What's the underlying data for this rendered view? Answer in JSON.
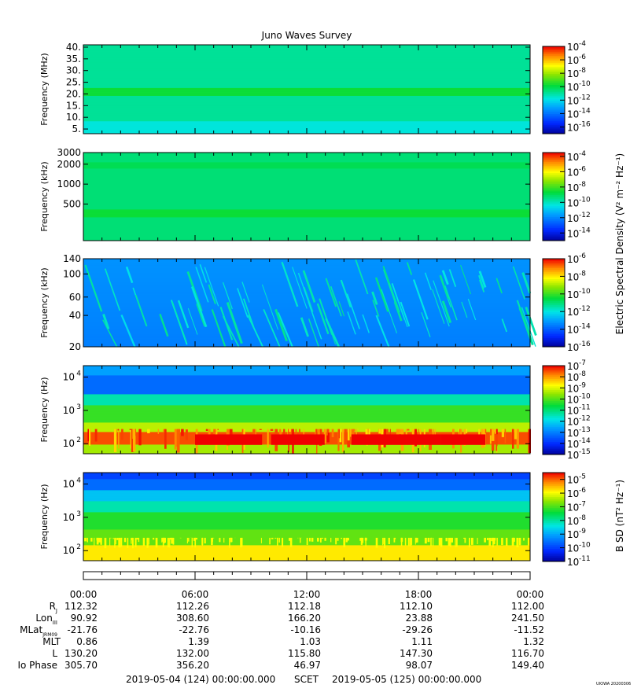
{
  "title": "Juno Waves Survey",
  "chart_data": [
    {
      "type": "heatmap",
      "ylabel": "Frequency (MHz)",
      "ylim": [
        3,
        41
      ],
      "yscale": "linear",
      "yticks": [
        {
          "v": 5,
          "label": "5."
        },
        {
          "v": 10,
          "label": "10."
        },
        {
          "v": 15,
          "label": "15."
        },
        {
          "v": 20,
          "label": "20."
        },
        {
          "v": 25,
          "label": "25."
        },
        {
          "v": 30,
          "label": "30."
        },
        {
          "v": 35,
          "label": "35."
        },
        {
          "v": 40,
          "label": "40."
        }
      ],
      "colorbar": {
        "min_exp": -17,
        "max_exp": -4,
        "ticks": [
          {
            "exp": -4,
            "label": "-4"
          },
          {
            "exp": -6,
            "label": "-6"
          },
          {
            "exp": -8,
            "label": "-8"
          },
          {
            "exp": -10,
            "label": "-10"
          },
          {
            "exp": -12,
            "label": "-12"
          },
          {
            "exp": -14,
            "label": "-14"
          },
          {
            "exp": -16,
            "label": "-16"
          }
        ]
      }
    },
    {
      "type": "heatmap",
      "ylabel": "Frequency (kHz)",
      "ylim": [
        140,
        3000
      ],
      "yscale": "log",
      "yticks": [
        {
          "v": 500,
          "label": "500"
        },
        {
          "v": 1000,
          "label": "1000"
        },
        {
          "v": 2000,
          "label": "2000"
        },
        {
          "v": 3000,
          "label": "3000"
        }
      ],
      "colorbar": {
        "min_exp": -15,
        "max_exp": -3.5,
        "label": "Electric Spectral Density (V² m⁻² Hz⁻¹)",
        "ticks": [
          {
            "exp": -4,
            "label": "-4"
          },
          {
            "exp": -6,
            "label": "-6"
          },
          {
            "exp": -8,
            "label": "-8"
          },
          {
            "exp": -10,
            "label": "-10"
          },
          {
            "exp": -12,
            "label": "-12"
          },
          {
            "exp": -14,
            "label": "-14"
          }
        ]
      }
    },
    {
      "type": "heatmap",
      "ylabel": "Frequency (kHz)",
      "ylim": [
        20,
        140
      ],
      "yscale": "log",
      "yticks": [
        {
          "v": 20,
          "label": "20"
        },
        {
          "v": 40,
          "label": "40"
        },
        {
          "v": 60,
          "label": "60"
        },
        {
          "v": 100,
          "label": "100"
        },
        {
          "v": 140,
          "label": "140"
        }
      ],
      "colorbar": {
        "min_exp": -16,
        "max_exp": -6,
        "ticks": [
          {
            "exp": -6,
            "label": "-6"
          },
          {
            "exp": -8,
            "label": "-8"
          },
          {
            "exp": -10,
            "label": "-10"
          },
          {
            "exp": -12,
            "label": "-12"
          },
          {
            "exp": -14,
            "label": "-14"
          },
          {
            "exp": -16,
            "label": "-16"
          }
        ]
      }
    },
    {
      "type": "heatmap",
      "ylabel": "Frequency (Hz)",
      "ylim": [
        50,
        22000
      ],
      "yscale": "log",
      "yticks": [
        {
          "v": 100,
          "label": "10",
          "exp": "2"
        },
        {
          "v": 1000,
          "label": "10",
          "exp": "3"
        },
        {
          "v": 10000,
          "label": "10",
          "exp": "4"
        }
      ],
      "colorbar": {
        "min_exp": -15,
        "max_exp": -7,
        "ticks": [
          {
            "exp": -7,
            "label": "-7"
          },
          {
            "exp": -8,
            "label": "-8"
          },
          {
            "exp": -9,
            "label": "-9"
          },
          {
            "exp": -10,
            "label": "-10"
          },
          {
            "exp": -11,
            "label": "-11"
          },
          {
            "exp": -12,
            "label": "-12"
          },
          {
            "exp": -13,
            "label": "-13"
          },
          {
            "exp": -14,
            "label": "-14"
          },
          {
            "exp": -15,
            "label": "-15"
          }
        ]
      }
    },
    {
      "type": "heatmap",
      "ylabel": "Frequency (Hz)",
      "ylim": [
        50,
        22000
      ],
      "yscale": "log",
      "yticks": [
        {
          "v": 100,
          "label": "10",
          "exp": "2"
        },
        {
          "v": 1000,
          "label": "10",
          "exp": "3"
        },
        {
          "v": 10000,
          "label": "10",
          "exp": "4"
        }
      ],
      "colorbar": {
        "min_exp": -11,
        "max_exp": -4.5,
        "label": "B SD (nT² Hz⁻¹)",
        "ticks": [
          {
            "exp": -5,
            "label": "-5"
          },
          {
            "exp": -6,
            "label": "-6"
          },
          {
            "exp": -7,
            "label": "-7"
          },
          {
            "exp": -8,
            "label": "-8"
          },
          {
            "exp": -9,
            "label": "-9"
          },
          {
            "exp": -10,
            "label": "-10"
          },
          {
            "exp": -11,
            "label": "-11"
          }
        ]
      }
    }
  ],
  "time_labels": [
    "00:00",
    "06:00",
    "12:00",
    "18:00",
    "00:00"
  ],
  "ephemeris": [
    {
      "name": "R",
      "sub": "J",
      "values": [
        "112.32",
        "112.26",
        "112.18",
        "112.10",
        "112.00"
      ]
    },
    {
      "name": "Lon",
      "sub": "III",
      "values": [
        "90.92",
        "308.60",
        "166.20",
        "23.88",
        "241.50"
      ]
    },
    {
      "name": "MLat",
      "sub": "JRM09",
      "values": [
        "-21.76",
        "-22.76",
        "-10.16",
        "-29.26",
        "-11.52"
      ]
    },
    {
      "name": "MLT",
      "sub": "",
      "values": [
        "0.86",
        "1.39",
        "1.03",
        "1.11",
        "1.32"
      ]
    },
    {
      "name": "L",
      "sub": "",
      "values": [
        "130.20",
        "132.00",
        "115.80",
        "147.30",
        "116.70"
      ]
    },
    {
      "name": "Io Phase",
      "sub": "",
      "values": [
        "305.70",
        "356.20",
        "46.97",
        "98.07",
        "149.40"
      ]
    }
  ],
  "footer": {
    "start": "2019-05-04 (124) 00:00:00.000",
    "scet": "SCET",
    "end": "2019-05-05 (125) 00:00:00.000",
    "stamp": "UIOWA 20200306"
  }
}
